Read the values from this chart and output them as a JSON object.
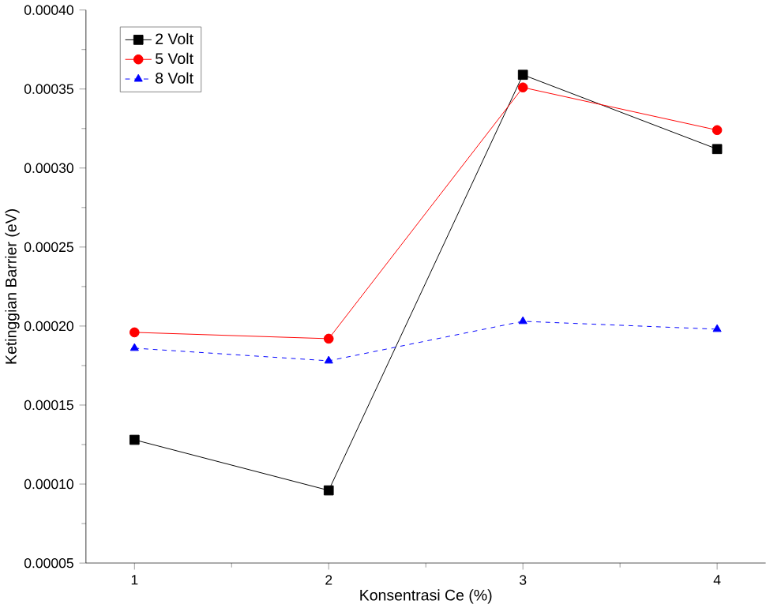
{
  "chart_data": {
    "type": "line",
    "xlabel": "Konsentrasi Ce (%)",
    "ylabel": "Ketinggian Barrier (eV)",
    "x": [
      1,
      2,
      3,
      4
    ],
    "xlim": [
      0.75,
      4.25
    ],
    "xticks": [
      1,
      2,
      3,
      4
    ],
    "ylim": [
      5e-05,
      0.0004
    ],
    "yticks": [
      {
        "value": 5e-05,
        "label": "0.00005"
      },
      {
        "value": 0.0001,
        "label": "0.00010"
      },
      {
        "value": 0.00015,
        "label": "0.00015"
      },
      {
        "value": 0.0002,
        "label": "0.00020"
      },
      {
        "value": 0.00025,
        "label": "0.00025"
      },
      {
        "value": 0.0003,
        "label": "0.00030"
      },
      {
        "value": 0.00035,
        "label": "0.00035"
      },
      {
        "value": 0.0004,
        "label": "0.00040"
      }
    ],
    "legend": "top left",
    "grid": false,
    "series": [
      {
        "name": "2 Volt",
        "color": "#000000",
        "marker": "square",
        "line_style": "solid",
        "values": [
          0.000128,
          9.6e-05,
          0.000359,
          0.000312
        ]
      },
      {
        "name": "5 Volt",
        "color": "#ff0000",
        "marker": "circle",
        "line_style": "solid",
        "values": [
          0.000196,
          0.000192,
          0.000351,
          0.000324
        ]
      },
      {
        "name": "8 Volt",
        "color": "#0000ff",
        "marker": "triangle",
        "line_style": "dashed",
        "values": [
          0.000186,
          0.000178,
          0.000203,
          0.000198
        ]
      }
    ]
  }
}
